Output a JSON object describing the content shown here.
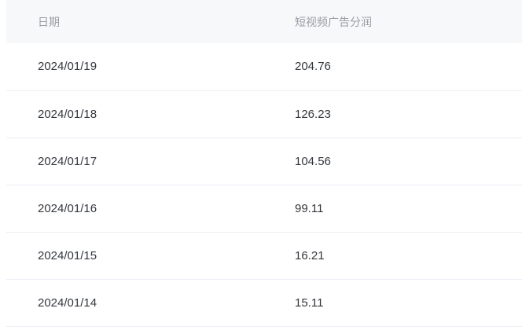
{
  "table": {
    "columns": [
      {
        "key": "date",
        "label": "日期"
      },
      {
        "key": "value",
        "label": "短视频广告分润"
      }
    ],
    "rows": [
      {
        "date": "2024/01/19",
        "value": "204.76"
      },
      {
        "date": "2024/01/18",
        "value": "126.23"
      },
      {
        "date": "2024/01/17",
        "value": "104.56"
      },
      {
        "date": "2024/01/16",
        "value": "99.11"
      },
      {
        "date": "2024/01/15",
        "value": "16.21"
      },
      {
        "date": "2024/01/14",
        "value": "15.11"
      }
    ]
  },
  "colors": {
    "page_bg": "#ffffff",
    "header_bg": "#f7f8fa",
    "header_text": "#9a9da3",
    "body_text": "#33373d",
    "border": "#ebeef5"
  }
}
